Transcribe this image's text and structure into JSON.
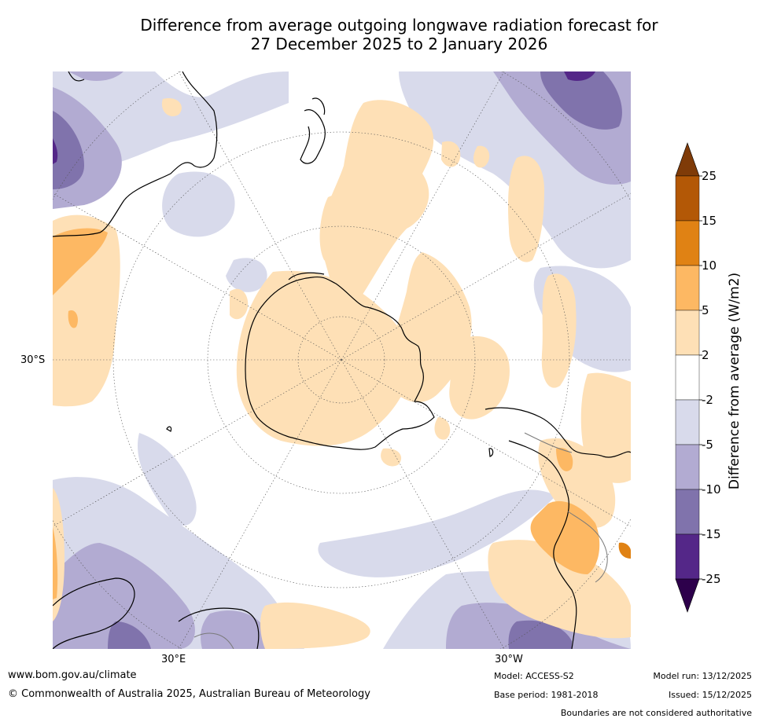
{
  "title_line1": "Difference from average outgoing longwave radiation forecast for",
  "title_line2": "27 December 2025 to 2 January 2026",
  "axis": {
    "lat_label": "30°S",
    "lon_label_left": "30°E",
    "lon_label_right": "30°W"
  },
  "colorbar": {
    "title": "Difference from average (W/m2)",
    "ticks": [
      "25",
      "15",
      "10",
      "5",
      "2",
      "-2",
      "-5",
      "-10",
      "-15",
      "-25"
    ],
    "colors": {
      "over": "#7f3b08",
      "b15_25": "#b35806",
      "b10_15": "#e08214",
      "b5_10": "#fdb863",
      "b2_5": "#fee0b6",
      "bneg2_2": "#ffffff",
      "bneg5_neg2": "#d8daeb",
      "bneg10_neg5": "#b2abd2",
      "bneg15_neg10": "#8073ac",
      "bneg25_neg15": "#542788",
      "under": "#2d004b"
    }
  },
  "footer": {
    "website": "www.bom.gov.au/climate",
    "copyright": "© Commonwealth of Australia 2025, Australian Bureau of Meteorology",
    "model": "Model: ACCESS-S2",
    "base_period": "Base period: 1981-2018",
    "model_run": "Model run: 13/12/2025",
    "issued": "Issued: 15/12/2025",
    "disclaimer": "Boundaries are not considered authoritative"
  }
}
